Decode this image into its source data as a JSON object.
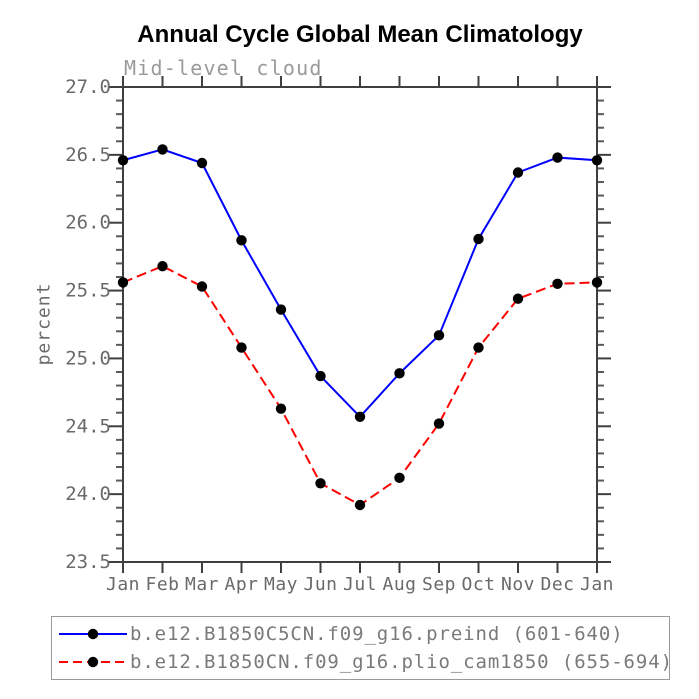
{
  "title": "Annual Cycle Global Mean Climatology",
  "chart_data": {
    "type": "line",
    "title": "Annual Cycle Global Mean Climatology",
    "subtitle": "Mid-level cloud",
    "ylabel": "percent",
    "xlabel": "",
    "categories": [
      "Jan",
      "Feb",
      "Mar",
      "Apr",
      "May",
      "Jun",
      "Jul",
      "Aug",
      "Sep",
      "Oct",
      "Nov",
      "Dec",
      "Jan"
    ],
    "ylim": [
      23.5,
      27.0
    ],
    "ytick_major_step": 0.5,
    "ytick_minor_step": 0.1,
    "ytick_labels": [
      "27.0",
      "26.5",
      "26.0",
      "25.5",
      "25.0",
      "24.5",
      "24.0",
      "23.5"
    ],
    "grid": false,
    "legend_position": "bottom",
    "series": [
      {
        "name": "b.e12.B1850C5CN.f09_g16.preind (601-640)",
        "color": "#0000ff",
        "line_style": "solid",
        "marker": "filled-black-circle",
        "values": [
          26.46,
          26.54,
          26.44,
          25.87,
          25.36,
          24.87,
          24.57,
          24.89,
          25.17,
          25.88,
          26.37,
          26.48,
          26.46
        ]
      },
      {
        "name": "b.e12.B1850CN.f09_g16.plio_cam1850 (655-694)",
        "color": "#ff0000",
        "line_style": "dashed",
        "marker": "filled-black-circle",
        "values": [
          25.56,
          25.68,
          25.53,
          25.08,
          24.63,
          24.08,
          23.92,
          24.12,
          24.52,
          25.08,
          25.44,
          25.55,
          25.56
        ]
      }
    ]
  },
  "colors": {
    "axis": "#3f3f3f",
    "minor_tick": "#5a5a5a",
    "tick_label": "#6a6a6a",
    "subtitle_text": "#9a9a9a",
    "legend_text": "#7a7a7a",
    "legend_border": "#9a9a9a",
    "marker": "#000000",
    "title_text": "#000000",
    "background": "#ffffff"
  }
}
